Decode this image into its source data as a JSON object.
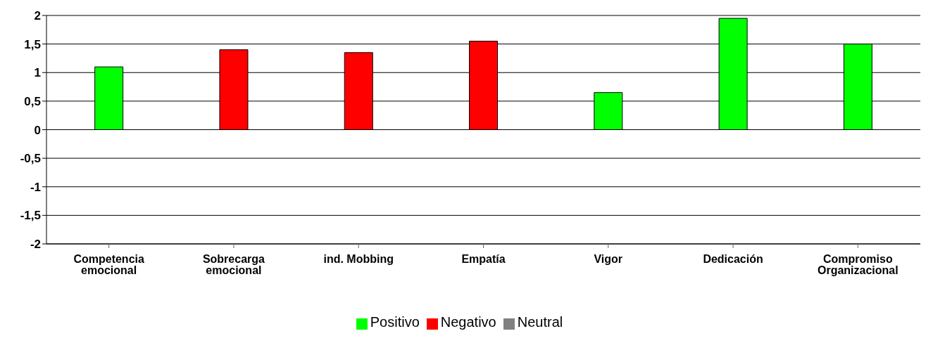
{
  "chart_data": {
    "type": "bar",
    "categories": [
      "Competencia emocional",
      "Sobrecarga emocional",
      "ind. Mobbing",
      "Empatía",
      "Vigor",
      "Dedicación",
      "Compromiso Organizacional"
    ],
    "series": [
      {
        "name": "Positivo",
        "color": "#00ff00",
        "values": [
          1.1,
          null,
          null,
          null,
          0.65,
          1.95,
          1.5
        ]
      },
      {
        "name": "Negativo",
        "color": "#ff0000",
        "values": [
          null,
          1.4,
          1.35,
          1.55,
          null,
          null,
          null
        ]
      },
      {
        "name": "Neutral",
        "color": "#808080",
        "values": [
          null,
          null,
          null,
          null,
          null,
          null,
          null
        ]
      }
    ],
    "stacked": true,
    "ylim": [
      -2,
      2
    ],
    "yticks": [
      {
        "value": -2,
        "label": "-2"
      },
      {
        "value": -1.5,
        "label": "-1,5"
      },
      {
        "value": -1,
        "label": "-1"
      },
      {
        "value": -0.5,
        "label": "-0,5"
      },
      {
        "value": 0,
        "label": "0"
      },
      {
        "value": 0.5,
        "label": "0,5"
      },
      {
        "value": 1,
        "label": "1"
      },
      {
        "value": 1.5,
        "label": "1,5"
      },
      {
        "value": 2,
        "label": "2"
      }
    ],
    "grid": "y",
    "legend": "bottom"
  }
}
